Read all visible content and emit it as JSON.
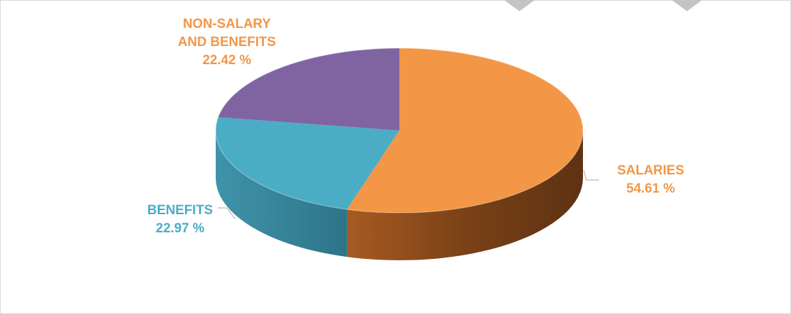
{
  "chart_data": {
    "type": "pie",
    "title": "",
    "style": "3d",
    "slices": [
      {
        "label_lines": [
          "SALARIES"
        ],
        "value_text": "54.61 %",
        "value": 54.61,
        "color": "#F39645",
        "side_color": "#8F4E1C"
      },
      {
        "label_lines": [
          "BENEFITS"
        ],
        "value_text": "22.97 %",
        "value": 22.97,
        "color": "#4BACC6",
        "side_color": "#2F7E93"
      },
      {
        "label_lines": [
          "NON-SALARY",
          "AND BENEFITS"
        ],
        "value_text": "22.42 %",
        "value": 22.42,
        "color": "#8064A2",
        "side_color": "#56416F"
      }
    ],
    "legend": "none",
    "label_color": {
      "SALARIES": "#F39645",
      "BENEFITS": "#4BACC6",
      "NON-SALARY AND BENEFITS": "#F39645"
    }
  }
}
